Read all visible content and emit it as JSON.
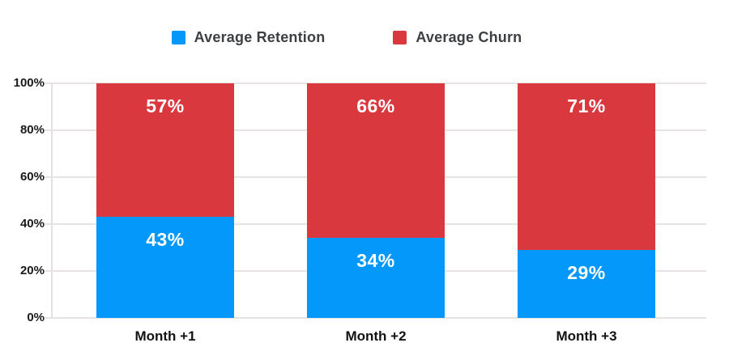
{
  "chart_data": {
    "type": "bar",
    "stacked": true,
    "title": "",
    "categories": [
      "Month +1",
      "Month +2",
      "Month +3"
    ],
    "series": [
      {
        "name": "Average Retention",
        "color": "#0598FB",
        "values": [
          43,
          34,
          29
        ]
      },
      {
        "name": "Average Churn",
        "color": "#D9383E",
        "values": [
          57,
          66,
          71
        ]
      }
    ],
    "value_suffix": "%",
    "value_labels": "inside-top",
    "ylim": [
      0,
      100
    ],
    "yticks": [
      "0%",
      "20%",
      "40%",
      "60%",
      "80%",
      "100%"
    ],
    "grid": true,
    "legend_position": "top"
  },
  "colors": {
    "grid": "#E7E3E3",
    "axis_text": "#1A1A1A",
    "legend_text": "#3C4043",
    "bar_value_text": "#FFFFFF"
  }
}
